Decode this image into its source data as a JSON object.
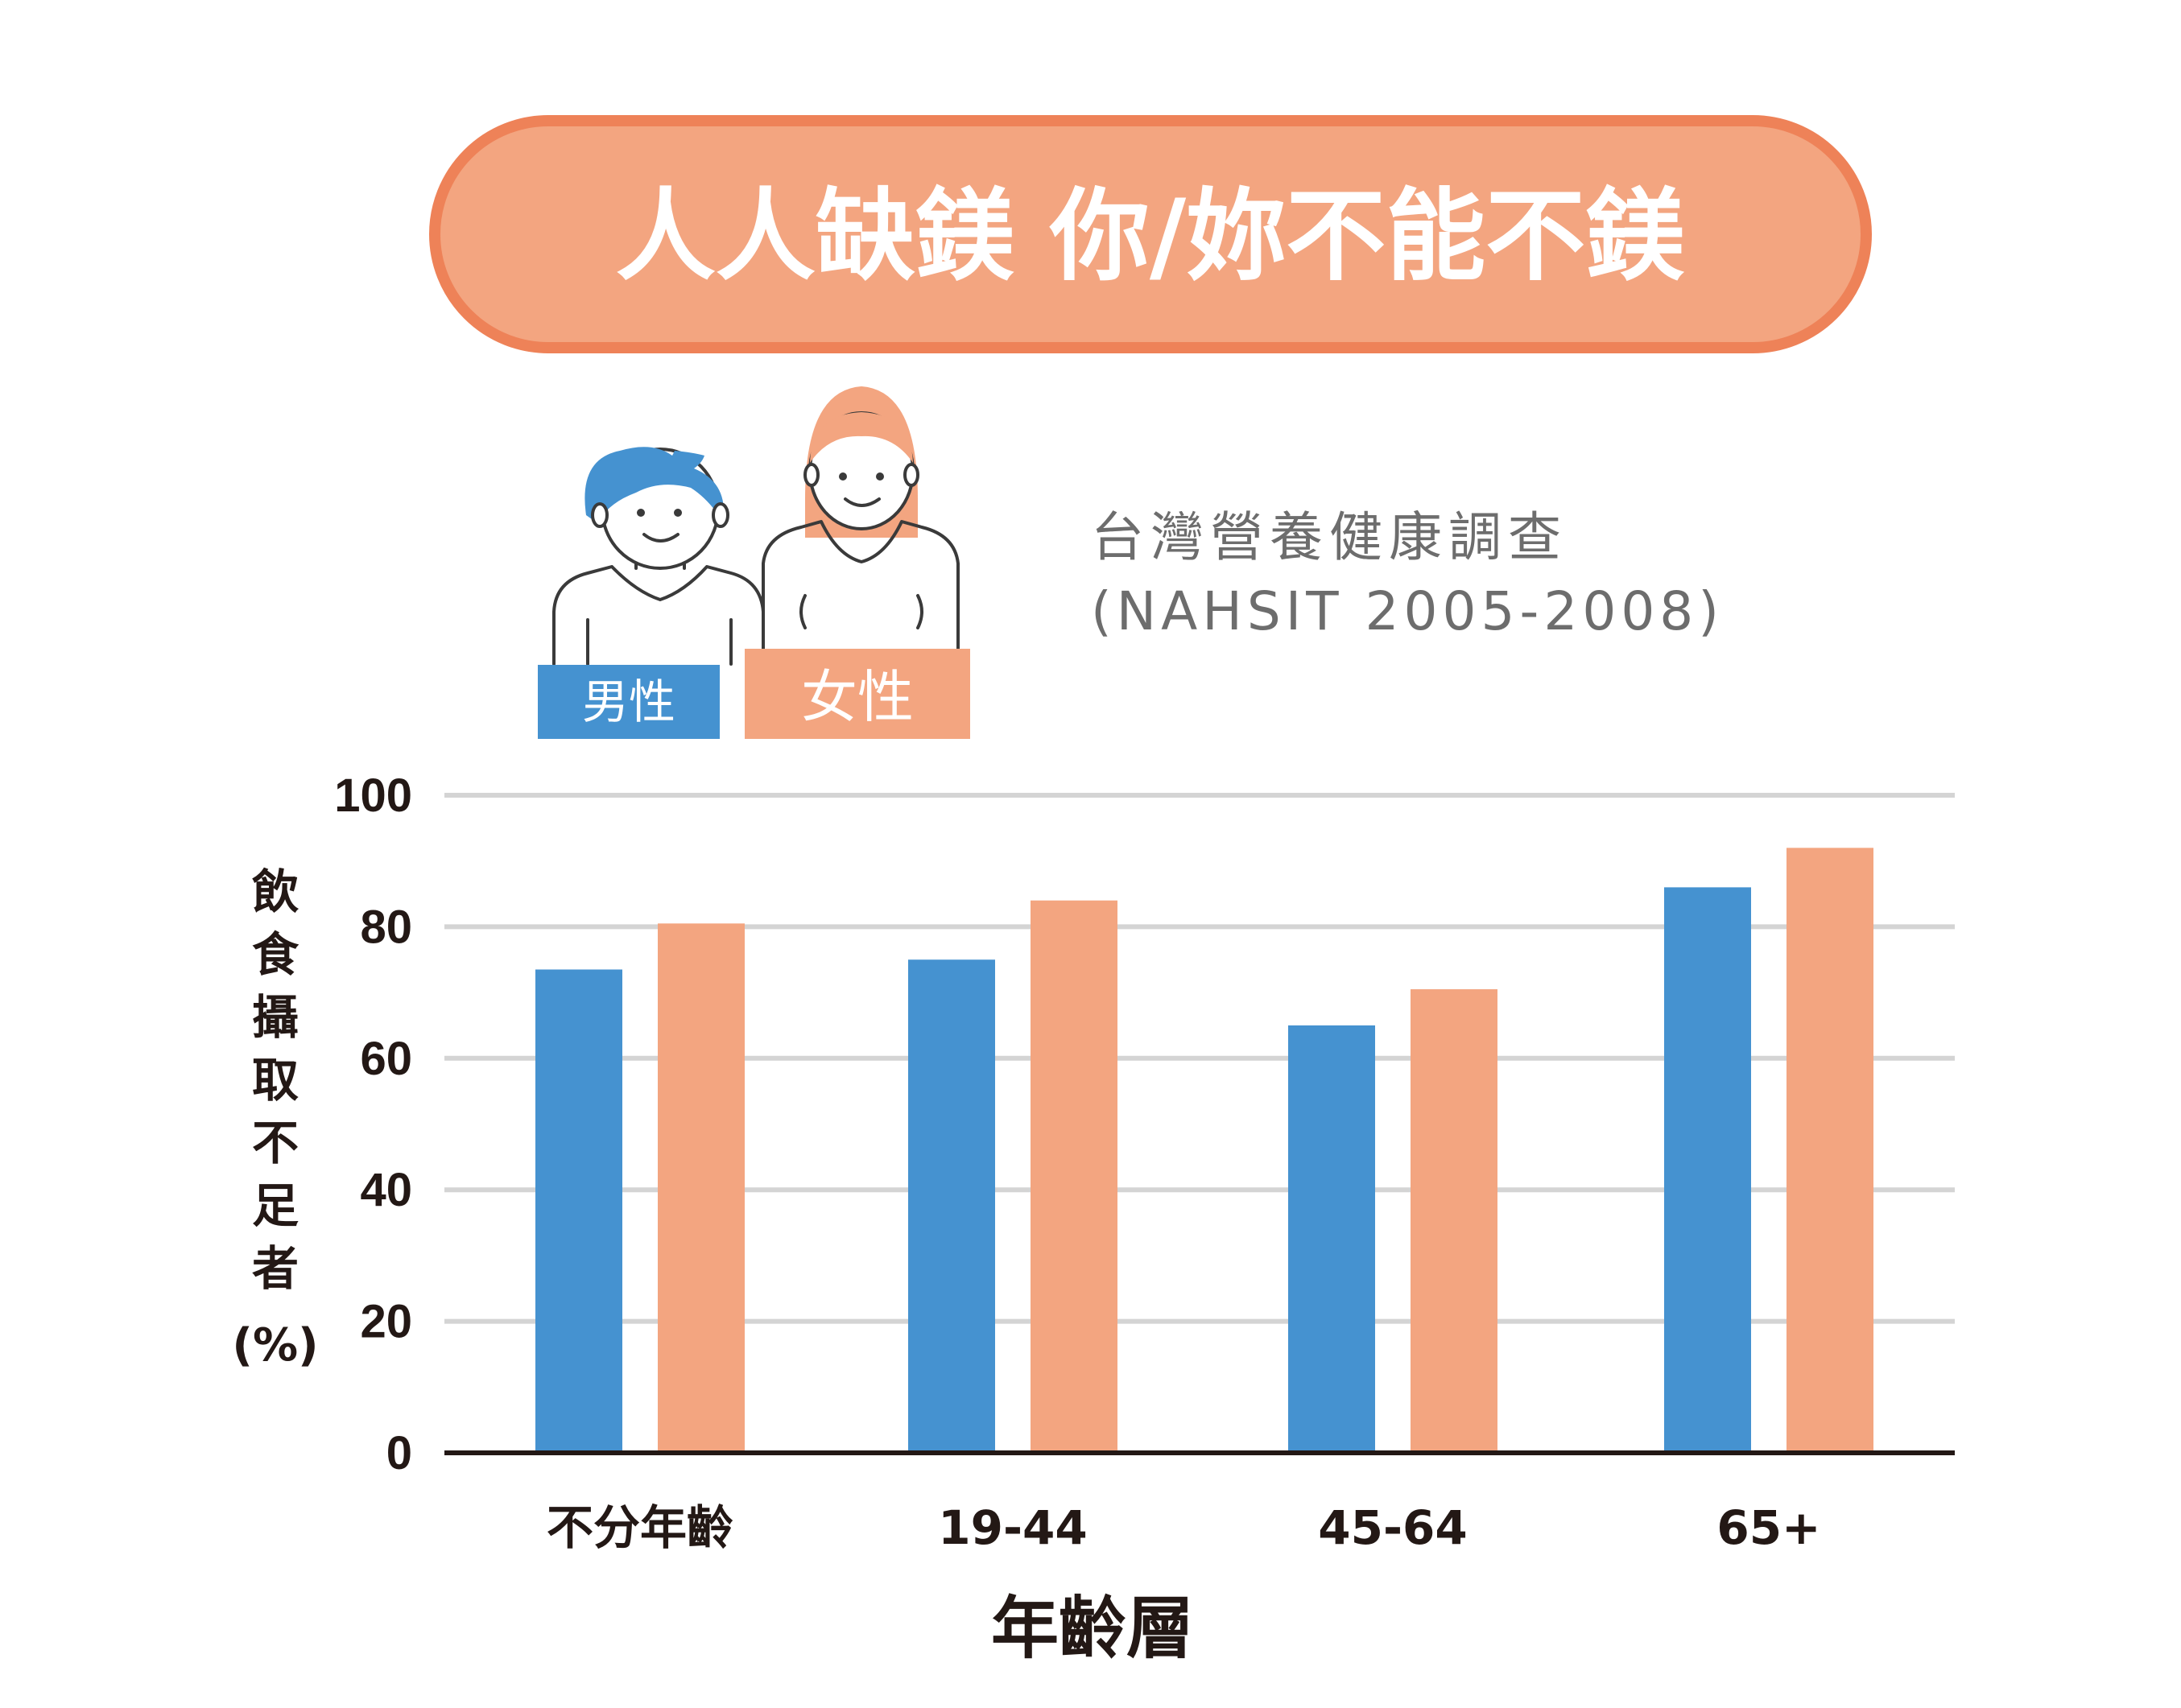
{
  "title": "人人缺鎂 你/妳不能不鎂",
  "source": {
    "line1": "台灣營養健康調查",
    "line2": "(NAHSIT 2005-2008)"
  },
  "colors": {
    "male": "#4592d0",
    "female": "#f3a580",
    "title_fill": "#f3a580",
    "title_border": "#ee8258",
    "grid": "#d4d4d4",
    "axis": "#231815"
  },
  "chart_data": {
    "type": "bar",
    "categories": [
      "不分年齡",
      "19-44",
      "45-64",
      "65+"
    ],
    "series": [
      {
        "name": "男性",
        "values": [
          73.5,
          75,
          65,
          86
        ],
        "color": "#4592d0"
      },
      {
        "name": "女性",
        "values": [
          80.5,
          84,
          70.5,
          92
        ],
        "color": "#f3a580"
      }
    ],
    "ylim": [
      0,
      100
    ],
    "yticks": [
      0,
      20,
      40,
      60,
      80,
      100
    ],
    "ylabel_chars": [
      "飲",
      "食",
      "攝",
      "取",
      "不",
      "足",
      "者"
    ],
    "ylabel_unit": "(%)",
    "xlabel": "年齡層",
    "grid": true,
    "legend_position": "top-left"
  }
}
